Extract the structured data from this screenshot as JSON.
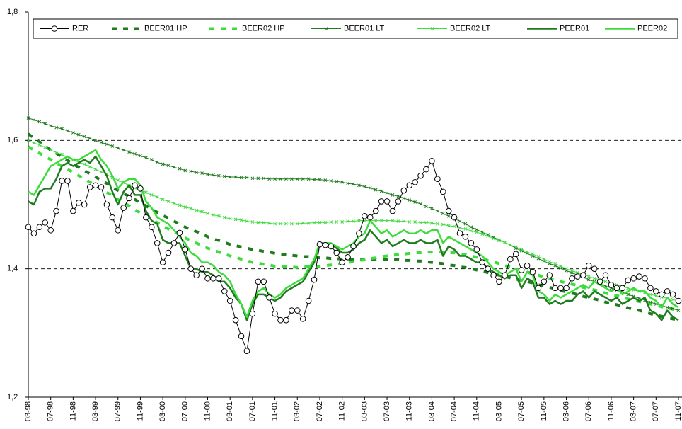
{
  "chart_data": {
    "type": "line",
    "categories": [
      "03-98",
      null,
      null,
      null,
      "07-98",
      null,
      null,
      null,
      "11-98",
      null,
      null,
      null,
      "03-99",
      null,
      null,
      null,
      "07-99",
      null,
      null,
      null,
      "11-99",
      null,
      null,
      null,
      "03-00",
      null,
      null,
      null,
      "07-00",
      null,
      null,
      null,
      "11-00",
      null,
      null,
      null,
      "03-01",
      null,
      null,
      null,
      "07-01",
      null,
      null,
      null,
      "11-01",
      null,
      null,
      null,
      "03-02",
      null,
      null,
      null,
      "07-02",
      null,
      null,
      null,
      "11-02",
      null,
      null,
      null,
      "03-03",
      null,
      null,
      null,
      "07-03",
      null,
      null,
      null,
      "11-03",
      null,
      null,
      null,
      "03-04",
      null,
      null,
      null,
      "07-04",
      null,
      null,
      null,
      "11-04",
      null,
      null,
      null,
      "03-05",
      null,
      null,
      null,
      "07-05",
      null,
      null,
      null,
      "11-05",
      null,
      null,
      null,
      "03-06",
      null,
      null,
      null,
      "07-06",
      null,
      null,
      null,
      "11-06",
      null,
      null,
      null,
      "03-07",
      null,
      null,
      null,
      "07-07",
      null,
      null,
      null,
      "11-07"
    ],
    "ylim": [
      1.2,
      1.8
    ],
    "yticks": [
      {
        "value": 1.2,
        "label": "1,2"
      },
      {
        "value": 1.4,
        "label": "1,4"
      },
      {
        "value": 1.6,
        "label": "1,6"
      },
      {
        "value": 1.8,
        "label": "1,8"
      }
    ],
    "grid": true,
    "legend": "top",
    "series": [
      {
        "name": "RER",
        "color": "#000000",
        "marker": "circle",
        "dashed": false,
        "width": 1,
        "values": [
          1.465,
          1.455,
          1.465,
          1.472,
          1.46,
          1.49,
          1.537,
          1.537,
          1.49,
          1.503,
          1.5,
          1.527,
          1.53,
          1.527,
          1.5,
          1.48,
          1.46,
          1.495,
          1.51,
          1.53,
          1.525,
          1.48,
          1.465,
          1.44,
          1.41,
          1.425,
          1.44,
          1.456,
          1.43,
          1.4,
          1.39,
          1.4,
          1.385,
          1.385,
          1.385,
          1.365,
          1.35,
          1.32,
          1.295,
          1.272,
          1.33,
          1.38,
          1.38,
          1.355,
          1.33,
          1.32,
          1.32,
          1.335,
          1.335,
          1.322,
          1.35,
          1.383,
          1.438,
          1.437,
          1.435,
          1.425,
          1.41,
          1.418,
          1.435,
          1.455,
          1.482,
          1.48,
          1.49,
          1.505,
          1.505,
          1.49,
          1.505,
          1.522,
          1.53,
          1.535,
          1.545,
          1.555,
          1.568,
          1.54,
          1.52,
          1.49,
          1.48,
          1.455,
          1.45,
          1.44,
          1.43,
          1.41,
          1.4,
          1.39,
          1.38,
          1.39,
          1.415,
          1.423,
          1.398,
          1.405,
          1.395,
          1.37,
          1.38,
          1.39,
          1.37,
          1.37,
          1.37,
          1.385,
          1.388,
          1.39,
          1.405,
          1.4,
          1.38,
          1.39,
          1.375,
          1.37,
          1.37,
          1.382,
          1.385,
          1.388,
          1.385,
          1.37,
          1.365,
          1.36,
          1.365,
          1.36,
          1.35
        ]
      },
      {
        "name": "BEER01 HP",
        "color": "#1e7b1e",
        "marker": "none",
        "dashed": true,
        "width": 4,
        "values": [
          1.61,
          1.604,
          1.598,
          1.591,
          1.585,
          1.58,
          1.574,
          1.569,
          1.563,
          1.558,
          1.553,
          1.548,
          1.543,
          1.538,
          1.533,
          1.527,
          1.522,
          1.517,
          1.513,
          1.508,
          1.503,
          1.498,
          1.493,
          1.488,
          1.483,
          1.479,
          1.474,
          1.47,
          1.465,
          1.461,
          1.458,
          1.454,
          1.45,
          1.447,
          1.444,
          1.441,
          1.438,
          1.436,
          1.434,
          1.432,
          1.43,
          1.429,
          1.427,
          1.426,
          1.424,
          1.423,
          1.422,
          1.421,
          1.42,
          1.419,
          1.419,
          1.418,
          1.417,
          1.417,
          1.416,
          1.416,
          1.415,
          1.415,
          1.415,
          1.414,
          1.414,
          1.414,
          1.414,
          1.414,
          1.414,
          1.414,
          1.414,
          1.413,
          1.413,
          1.412,
          1.412,
          1.411,
          1.41,
          1.409,
          1.408,
          1.406,
          1.405,
          1.403,
          1.402,
          1.4,
          1.398,
          1.396,
          1.394,
          1.392,
          1.39,
          1.388,
          1.386,
          1.384,
          1.382,
          1.38,
          1.378,
          1.375,
          1.373,
          1.371,
          1.369,
          1.366,
          1.364,
          1.362,
          1.36,
          1.357,
          1.355,
          1.353,
          1.351,
          1.348,
          1.346,
          1.344,
          1.342,
          1.339,
          1.337,
          1.335,
          1.333,
          1.33,
          1.328,
          1.326,
          1.324,
          1.322,
          1.32
        ]
      },
      {
        "name": "BEER02 HP",
        "color": "#3ddc3d",
        "marker": "none",
        "dashed": true,
        "width": 4,
        "values": [
          1.59,
          1.585,
          1.58,
          1.575,
          1.57,
          1.565,
          1.56,
          1.555,
          1.55,
          1.545,
          1.54,
          1.535,
          1.53,
          1.525,
          1.519,
          1.514,
          1.508,
          1.503,
          1.498,
          1.492,
          1.487,
          1.482,
          1.477,
          1.472,
          1.467,
          1.462,
          1.458,
          1.453,
          1.448,
          1.444,
          1.44,
          1.436,
          1.432,
          1.429,
          1.426,
          1.423,
          1.42,
          1.418,
          1.415,
          1.413,
          1.41,
          1.409,
          1.407,
          1.406,
          1.404,
          1.404,
          1.403,
          1.403,
          1.402,
          1.403,
          1.403,
          1.404,
          1.404,
          1.405,
          1.406,
          1.407,
          1.408,
          1.41,
          1.411,
          1.413,
          1.414,
          1.416,
          1.417,
          1.419,
          1.42,
          1.421,
          1.422,
          1.423,
          1.424,
          1.425,
          1.425,
          1.426,
          1.426,
          1.426,
          1.426,
          1.425,
          1.425,
          1.423,
          1.422,
          1.42,
          1.418,
          1.416,
          1.413,
          1.411,
          1.408,
          1.405,
          1.403,
          1.4,
          1.397,
          1.395,
          1.392,
          1.39,
          1.387,
          1.385,
          1.383,
          1.38,
          1.378,
          1.376,
          1.374,
          1.371,
          1.369,
          1.367,
          1.365,
          1.362,
          1.36,
          1.358,
          1.356,
          1.353,
          1.351,
          1.349,
          1.347,
          1.345,
          1.343,
          1.341,
          1.339,
          1.337,
          1.335
        ]
      },
      {
        "name": "BEER01 LT",
        "color": "#1e7b1e",
        "marker": "x",
        "dashed": false,
        "width": 1,
        "values": [
          1.635,
          1.632,
          1.629,
          1.626,
          1.623,
          1.62,
          1.618,
          1.615,
          1.612,
          1.609,
          1.606,
          1.603,
          1.6,
          1.597,
          1.594,
          1.591,
          1.588,
          1.585,
          1.582,
          1.579,
          1.576,
          1.573,
          1.57,
          1.566,
          1.563,
          1.561,
          1.558,
          1.556,
          1.553,
          1.552,
          1.55,
          1.549,
          1.547,
          1.546,
          1.545,
          1.544,
          1.543,
          1.543,
          1.542,
          1.542,
          1.541,
          1.541,
          1.541,
          1.54,
          1.54,
          1.54,
          1.54,
          1.54,
          1.54,
          1.54,
          1.54,
          1.539,
          1.539,
          1.538,
          1.537,
          1.536,
          1.535,
          1.533,
          1.532,
          1.53,
          1.528,
          1.526,
          1.523,
          1.521,
          1.518,
          1.515,
          1.513,
          1.51,
          1.507,
          1.504,
          1.501,
          1.497,
          1.494,
          1.49,
          1.486,
          1.482,
          1.478,
          1.474,
          1.47,
          1.465,
          1.461,
          1.457,
          1.453,
          1.449,
          1.445,
          1.441,
          1.437,
          1.432,
          1.428,
          1.424,
          1.42,
          1.416,
          1.412,
          1.408,
          1.405,
          1.401,
          1.397,
          1.394,
          1.39,
          1.387,
          1.383,
          1.38,
          1.377,
          1.373,
          1.37,
          1.367,
          1.364,
          1.36,
          1.357,
          1.354,
          1.351,
          1.348,
          1.345,
          1.343,
          1.34,
          1.338,
          1.335
        ]
      },
      {
        "name": "BEER02 LT",
        "color": "#3ddc3d",
        "marker": "x",
        "dashed": false,
        "width": 1,
        "values": [
          1.6,
          1.596,
          1.593,
          1.589,
          1.585,
          1.581,
          1.578,
          1.574,
          1.57,
          1.566,
          1.563,
          1.559,
          1.555,
          1.551,
          1.547,
          1.542,
          1.538,
          1.534,
          1.53,
          1.526,
          1.522,
          1.519,
          1.515,
          1.512,
          1.508,
          1.505,
          1.502,
          1.499,
          1.496,
          1.494,
          1.491,
          1.489,
          1.486,
          1.484,
          1.482,
          1.48,
          1.478,
          1.477,
          1.476,
          1.474,
          1.473,
          1.472,
          1.472,
          1.471,
          1.47,
          1.47,
          1.47,
          1.47,
          1.47,
          1.471,
          1.471,
          1.472,
          1.472,
          1.472,
          1.473,
          1.473,
          1.473,
          1.474,
          1.474,
          1.475,
          1.475,
          1.475,
          1.475,
          1.475,
          1.475,
          1.475,
          1.474,
          1.474,
          1.473,
          1.473,
          1.472,
          1.472,
          1.471,
          1.47,
          1.469,
          1.467,
          1.466,
          1.464,
          1.462,
          1.459,
          1.457,
          1.454,
          1.451,
          1.447,
          1.444,
          1.441,
          1.437,
          1.434,
          1.43,
          1.426,
          1.423,
          1.419,
          1.415,
          1.411,
          1.408,
          1.404,
          1.4,
          1.397,
          1.394,
          1.391,
          1.388,
          1.385,
          1.383,
          1.38,
          1.377,
          1.375,
          1.372,
          1.37,
          1.367,
          1.365,
          1.363,
          1.36,
          1.358,
          1.356,
          1.354,
          1.352,
          1.35
        ]
      },
      {
        "name": "PEER01",
        "color": "#1e7b1e",
        "marker": "none",
        "dashed": false,
        "width": 2.5,
        "values": [
          1.505,
          1.5,
          1.52,
          1.525,
          1.525,
          1.54,
          1.56,
          1.565,
          1.56,
          1.565,
          1.57,
          1.565,
          1.575,
          1.56,
          1.545,
          1.52,
          1.5,
          1.52,
          1.53,
          1.515,
          1.515,
          1.49,
          1.475,
          1.47,
          1.445,
          1.44,
          1.44,
          1.44,
          1.42,
          1.4,
          1.4,
          1.395,
          1.395,
          1.39,
          1.38,
          1.38,
          1.37,
          1.355,
          1.345,
          1.32,
          1.345,
          1.36,
          1.36,
          1.355,
          1.35,
          1.355,
          1.365,
          1.37,
          1.375,
          1.38,
          1.395,
          1.41,
          1.44,
          1.435,
          1.438,
          1.432,
          1.425,
          1.425,
          1.43,
          1.44,
          1.445,
          1.46,
          1.45,
          1.44,
          1.445,
          1.435,
          1.44,
          1.445,
          1.44,
          1.44,
          1.445,
          1.44,
          1.44,
          1.445,
          1.42,
          1.435,
          1.43,
          1.42,
          1.42,
          1.415,
          1.41,
          1.41,
          1.4,
          1.395,
          1.39,
          1.385,
          1.39,
          1.39,
          1.37,
          1.385,
          1.38,
          1.355,
          1.355,
          1.345,
          1.35,
          1.345,
          1.35,
          1.35,
          1.36,
          1.365,
          1.355,
          1.365,
          1.36,
          1.355,
          1.35,
          1.355,
          1.345,
          1.35,
          1.355,
          1.35,
          1.355,
          1.335,
          1.33,
          1.32,
          1.335,
          1.325,
          1.32
        ]
      },
      {
        "name": "PEER02",
        "color": "#3ddc3d",
        "marker": "none",
        "dashed": false,
        "width": 2.5,
        "values": [
          1.52,
          1.515,
          1.53,
          1.545,
          1.56,
          1.565,
          1.57,
          1.575,
          1.57,
          1.57,
          1.575,
          1.58,
          1.585,
          1.57,
          1.56,
          1.545,
          1.525,
          1.535,
          1.54,
          1.54,
          1.53,
          1.505,
          1.495,
          1.48,
          1.475,
          1.47,
          1.46,
          1.45,
          1.44,
          1.425,
          1.42,
          1.41,
          1.41,
          1.405,
          1.395,
          1.39,
          1.38,
          1.36,
          1.345,
          1.325,
          1.35,
          1.365,
          1.37,
          1.36,
          1.355,
          1.36,
          1.37,
          1.375,
          1.38,
          1.385,
          1.4,
          1.415,
          1.44,
          1.44,
          1.44,
          1.435,
          1.43,
          1.435,
          1.44,
          1.45,
          1.455,
          1.475,
          1.465,
          1.455,
          1.46,
          1.45,
          1.455,
          1.46,
          1.455,
          1.455,
          1.46,
          1.455,
          1.46,
          1.46,
          1.44,
          1.45,
          1.445,
          1.44,
          1.435,
          1.43,
          1.425,
          1.42,
          1.41,
          1.4,
          1.395,
          1.39,
          1.395,
          1.4,
          1.38,
          1.395,
          1.39,
          1.365,
          1.36,
          1.35,
          1.36,
          1.355,
          1.36,
          1.365,
          1.37,
          1.375,
          1.37,
          1.38,
          1.375,
          1.37,
          1.365,
          1.37,
          1.36,
          1.365,
          1.37,
          1.365,
          1.365,
          1.355,
          1.35,
          1.34,
          1.355,
          1.345,
          1.34
        ]
      }
    ]
  }
}
